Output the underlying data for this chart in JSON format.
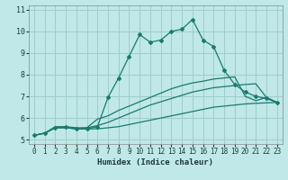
{
  "xlabel": "Humidex (Indice chaleur)",
  "xlim": [
    -0.5,
    23.5
  ],
  "ylim": [
    4.8,
    11.2
  ],
  "yticks": [
    5,
    6,
    7,
    8,
    9,
    10,
    11
  ],
  "xticks": [
    0,
    1,
    2,
    3,
    4,
    5,
    6,
    7,
    8,
    9,
    10,
    11,
    12,
    13,
    14,
    15,
    16,
    17,
    18,
    19,
    20,
    21,
    22,
    23
  ],
  "bg_color": "#c0e8e8",
  "grid_color": "#a0cccc",
  "line_color": "#1a7a6e",
  "lines": [
    {
      "x": [
        0,
        1,
        2,
        3,
        4,
        5,
        6,
        7,
        8,
        9,
        10,
        11,
        12,
        13,
        14,
        15,
        16,
        17,
        18,
        19,
        20,
        21,
        22,
        23
      ],
      "y": [
        5.2,
        5.3,
        5.55,
        5.55,
        5.5,
        5.5,
        5.5,
        5.55,
        5.6,
        5.7,
        5.8,
        5.9,
        6.0,
        6.1,
        6.2,
        6.3,
        6.4,
        6.5,
        6.55,
        6.6,
        6.65,
        6.68,
        6.7,
        6.72
      ],
      "marker": false
    },
    {
      "x": [
        0,
        1,
        2,
        3,
        4,
        5,
        6,
        7,
        8,
        9,
        10,
        11,
        12,
        13,
        14,
        15,
        16,
        17,
        18,
        19,
        20,
        21,
        22,
        23
      ],
      "y": [
        5.2,
        5.3,
        5.6,
        5.6,
        5.55,
        5.55,
        5.65,
        5.8,
        6.0,
        6.2,
        6.4,
        6.6,
        6.75,
        6.9,
        7.05,
        7.2,
        7.3,
        7.4,
        7.45,
        7.5,
        7.55,
        7.58,
        6.95,
        6.72
      ],
      "marker": false
    },
    {
      "x": [
        0,
        1,
        2,
        3,
        4,
        5,
        6,
        7,
        8,
        9,
        10,
        11,
        12,
        13,
        14,
        15,
        16,
        17,
        18,
        19,
        20,
        21,
        22,
        23
      ],
      "y": [
        5.2,
        5.3,
        5.55,
        5.55,
        5.5,
        5.55,
        5.95,
        6.1,
        6.35,
        6.55,
        6.75,
        6.95,
        7.15,
        7.35,
        7.5,
        7.62,
        7.7,
        7.8,
        7.85,
        7.9,
        7.0,
        6.8,
        6.95,
        6.72
      ],
      "marker": false
    },
    {
      "x": [
        0,
        1,
        2,
        3,
        4,
        5,
        6,
        7,
        8,
        9,
        10,
        11,
        12,
        13,
        14,
        15,
        16,
        17,
        18,
        19,
        20,
        21,
        22,
        23
      ],
      "y": [
        5.2,
        5.3,
        5.55,
        5.6,
        5.5,
        5.5,
        5.6,
        6.95,
        7.85,
        8.85,
        9.85,
        9.5,
        9.6,
        10.0,
        10.1,
        10.55,
        9.6,
        9.3,
        8.2,
        7.55,
        7.2,
        7.0,
        6.9,
        6.72
      ],
      "marker": true
    }
  ]
}
